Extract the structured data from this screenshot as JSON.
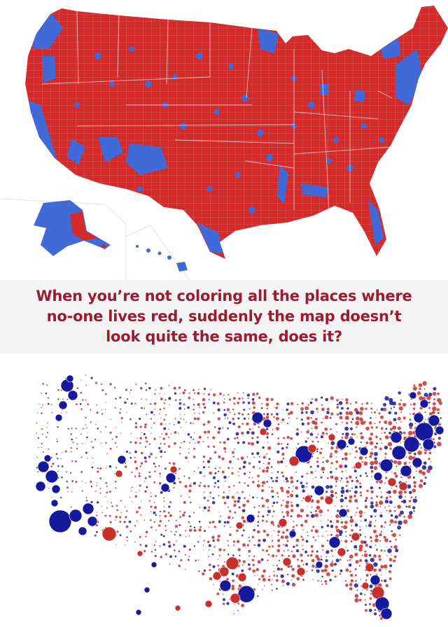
{
  "caption": {
    "lines": [
      "When you’re not coloring all the places where",
      "no-one lives red, suddenly the map doesn’t",
      "look quite the same, does it?"
    ]
  },
  "colors": {
    "republican_red": "#d42a2a",
    "democrat_blue": "#3f6ad8",
    "bubble_red": "#c8302c",
    "bubble_blue": "#151a9c",
    "caption_text": "#9b1b30",
    "border_line": "#f3d6d6"
  },
  "maps": {
    "top": {
      "type": "county-choropleth",
      "region": "United States"
    },
    "bottom": {
      "type": "proportional-bubble",
      "region": "United States"
    }
  }
}
